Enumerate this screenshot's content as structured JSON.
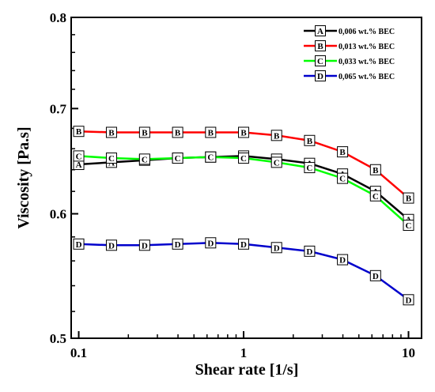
{
  "chart_data": {
    "type": "line",
    "xscale": "log",
    "yscale": "log",
    "xlabel": "Shear rate [1/s]",
    "ylabel": "Viscosity [Pa.s]",
    "xlim": [
      0.09,
      12
    ],
    "ylim": [
      0.5,
      0.8
    ],
    "xticks": [
      0.1,
      1,
      10
    ],
    "xtick_labels": [
      "0.1",
      "1",
      "10"
    ],
    "yticks": [
      0.5,
      0.6,
      0.7,
      0.8
    ],
    "ytick_labels": [
      "0.5",
      "0.6",
      "0.7",
      "0.8"
    ],
    "grid": false,
    "legend_position": "top-right",
    "x": [
      0.1,
      0.158,
      0.251,
      0.398,
      0.631,
      1,
      1.585,
      2.512,
      3.981,
      6.31,
      10
    ],
    "series": [
      {
        "name": "0,006 wt.% BEC",
        "marker": "A",
        "color": "#000000",
        "values": [
          0.645,
          0.647,
          0.649,
          0.651,
          0.652,
          0.653,
          0.65,
          0.646,
          0.636,
          0.62,
          0.595
        ]
      },
      {
        "name": "0,013 wt.% BEC",
        "marker": "B",
        "color": "#ff0000",
        "values": [
          0.677,
          0.676,
          0.676,
          0.676,
          0.676,
          0.676,
          0.673,
          0.668,
          0.657,
          0.64,
          0.614
        ]
      },
      {
        "name": "0,033 wt.% BEC",
        "marker": "C",
        "color": "#00ff00",
        "values": [
          0.653,
          0.651,
          0.65,
          0.651,
          0.652,
          0.651,
          0.647,
          0.642,
          0.632,
          0.616,
          0.59
        ]
      },
      {
        "name": "0,065 wt.% BEC",
        "marker": "D",
        "color": "#0000cc",
        "values": [
          0.574,
          0.573,
          0.573,
          0.574,
          0.575,
          0.574,
          0.571,
          0.568,
          0.561,
          0.548,
          0.529
        ]
      }
    ]
  }
}
